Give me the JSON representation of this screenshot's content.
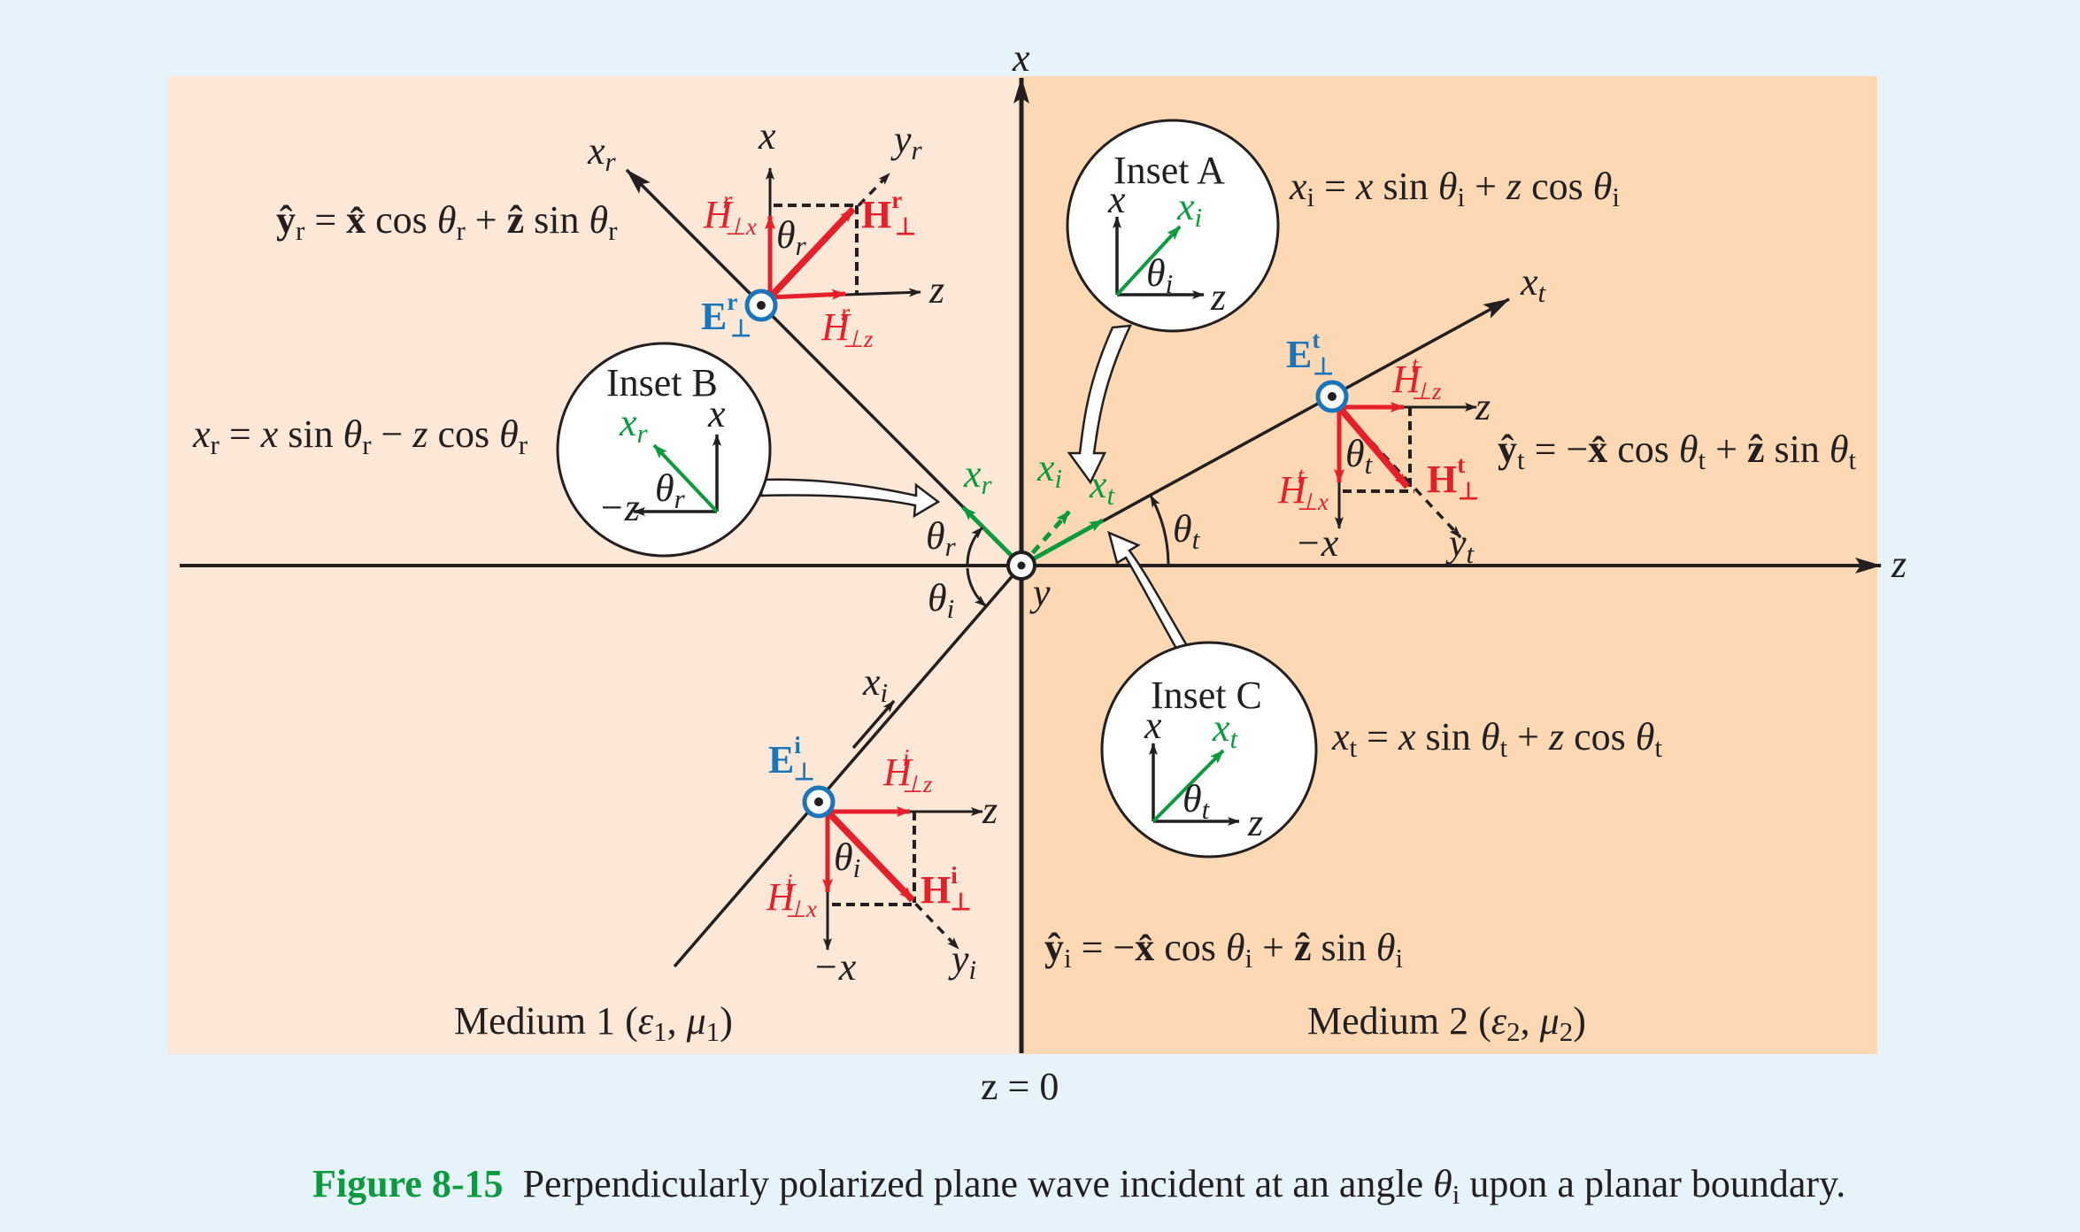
{
  "figure": {
    "caption_label": "Figure 8-15",
    "caption_text": "Perpendicularly polarized plane wave incident at an angle θi upon a planar boundary.",
    "colors": {
      "background": "#e6f3fb",
      "medium1": "#fde8d7",
      "medium2": "#fdd8b5",
      "field_h": "#e5202a",
      "field_e": "#1b75bb",
      "wave_vector": "#0a9b3f",
      "axis": "#231f20"
    }
  },
  "axes": {
    "x": "x",
    "z": "z",
    "y": "y",
    "boundary": "z = 0"
  },
  "media": {
    "medium1": "Medium 1 (ε1, μ1)",
    "medium2": "Medium 2 (ε2, μ2)"
  },
  "rays": {
    "incident": "xi",
    "reflected": "xr",
    "transmitted": "xt"
  },
  "angles": {
    "incident": "θi",
    "reflected": "θr",
    "transmitted": "θt"
  },
  "equations": {
    "xi": "xi = x sin θi + z cos θi",
    "xr": "xr = x sin θr − z cos θr",
    "xt": "xt = x sin θt + z cos θt",
    "yr": "ŷr = x̂ cos θr + ẑ sin θr",
    "yi": "ŷi = −x̂ cos θi + ẑ sin θi",
    "yt": "ŷt = −x̂ cos θt + ẑ sin θt"
  },
  "insets": {
    "a": {
      "title": "Inset A",
      "axis": "x",
      "ray": "xi",
      "angle": "θi",
      "z": "z"
    },
    "b": {
      "title": "Inset B",
      "axis": "x",
      "ray": "xr",
      "angle": "θr",
      "z": "−z"
    },
    "c": {
      "title": "Inset C",
      "axis": "x",
      "ray": "xt",
      "angle": "θt",
      "z": "z"
    }
  },
  "field_labels": {
    "E": "E",
    "H": "H",
    "Hperp_x": "H⊥x",
    "Hperp_z": "H⊥z",
    "sup_i": "i",
    "sup_r": "r",
    "sup_t": "t",
    "sub_perp": "⊥",
    "local_x": "x",
    "local_z": "z",
    "local_neg_x": "−x",
    "local_yi": "yi",
    "local_yr": "yr",
    "local_yt": "yt"
  }
}
